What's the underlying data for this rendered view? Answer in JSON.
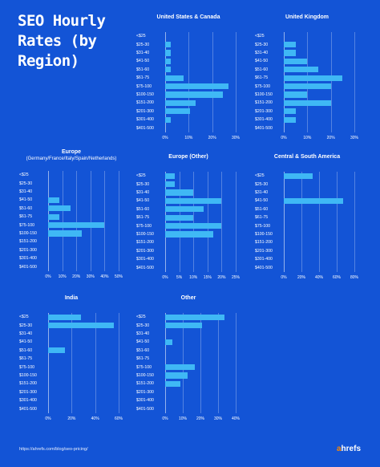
{
  "title": "SEO Hourly Rates (by Region)",
  "footer_url": "https://ahrefs.com/blog/seo-pricing/",
  "logo": {
    "accent": "a",
    "rest": "hrefs"
  },
  "colors": {
    "background": "#1354d6",
    "bar": "#3fb8f5"
  },
  "chart_data": [
    {
      "type": "bar",
      "orientation": "horizontal",
      "title": "United States & Canada",
      "subtitle": "",
      "categories": [
        "<$25",
        "$25-30",
        "$31-40",
        "$41-50",
        "$51-60",
        "$61-75",
        "$75-100",
        "$100-150",
        "$151-200",
        "$201-300",
        "$301-400",
        "$401-500"
      ],
      "values": [
        0,
        2.5,
        2.5,
        2.5,
        2.5,
        8,
        27,
        24.5,
        13,
        10.5,
        2.5,
        0
      ],
      "xlim": [
        0,
        30
      ],
      "ticks": [
        "0%",
        "10%",
        "20%",
        "30%"
      ],
      "grid": true
    },
    {
      "type": "bar",
      "orientation": "horizontal",
      "title": "United Kingdom",
      "subtitle": "",
      "categories": [
        "<$25",
        "$25-30",
        "$31-40",
        "$41-50",
        "$51-60",
        "$61-75",
        "$75-100",
        "$100-150",
        "$151-200",
        "$201-300",
        "$301-400",
        "$401-500"
      ],
      "values": [
        0,
        5,
        5,
        10,
        14.5,
        25,
        20,
        10,
        20,
        5,
        5,
        0
      ],
      "xlim": [
        0,
        30
      ],
      "ticks": [
        "0%",
        "10%",
        "20%",
        "30%"
      ],
      "grid": true
    },
    {
      "type": "bar",
      "orientation": "horizontal",
      "title": "Europe",
      "subtitle": "(Germany/France/Italy/Spain/Netherlands)",
      "categories": [
        "<$25",
        "$25-30",
        "$31-40",
        "$41-50",
        "$51-60",
        "$61-75",
        "$75-100",
        "$100-150",
        "$151-200",
        "$201-300",
        "$301-400",
        "$401-500"
      ],
      "values": [
        0,
        0,
        0,
        8,
        16,
        8,
        40,
        24,
        0,
        0,
        0,
        0
      ],
      "xlim": [
        0,
        50
      ],
      "ticks": [
        "0%",
        "10%",
        "20%",
        "30%",
        "40%",
        "50%"
      ],
      "grid": true
    },
    {
      "type": "bar",
      "orientation": "horizontal",
      "title": "Europe (Other)",
      "subtitle": "",
      "categories": [
        "<$25",
        "$25-30",
        "$31-40",
        "$41-50",
        "$51-60",
        "$61-75",
        "$75-100",
        "$100-150",
        "$151-200",
        "$201-300",
        "$301-400",
        "$401-500"
      ],
      "values": [
        3.5,
        3.5,
        10,
        20,
        13.5,
        10,
        20,
        17,
        0,
        0,
        0,
        0
      ],
      "xlim": [
        0,
        25
      ],
      "ticks": [
        "0%",
        "5%",
        "10%",
        "15%",
        "20%",
        "25%"
      ],
      "grid": true
    },
    {
      "type": "bar",
      "orientation": "horizontal",
      "title": "Central & South America",
      "subtitle": "",
      "categories": [
        "<$25",
        "$25-30",
        "$31-40",
        "$41-50",
        "$51-60",
        "$61-75",
        "$75-100",
        "$100-150",
        "$151-200",
        "$201-300",
        "$301-400",
        "$401-500"
      ],
      "values": [
        33,
        0,
        0,
        67,
        0,
        0,
        0,
        0,
        0,
        0,
        0,
        0
      ],
      "xlim": [
        0,
        80
      ],
      "ticks": [
        "0%",
        "20%",
        "40%",
        "60%",
        "80%"
      ],
      "grid": true
    },
    {
      "type": "bar",
      "orientation": "horizontal",
      "title": "India",
      "subtitle": "",
      "categories": [
        "<$25",
        "$25-30",
        "$31-40",
        "$41-50",
        "$51-60",
        "$61-75",
        "$75-100",
        "$100-150",
        "$151-200",
        "$201-300",
        "$301-400",
        "$401-500"
      ],
      "values": [
        28,
        56,
        0,
        0,
        14,
        0,
        0,
        0,
        0,
        0,
        0,
        0
      ],
      "xlim": [
        0,
        60
      ],
      "ticks": [
        "0%",
        "20%",
        "40%",
        "60%"
      ],
      "grid": true
    },
    {
      "type": "bar",
      "orientation": "horizontal",
      "title": "Other",
      "subtitle": "",
      "categories": [
        "<$25",
        "$25-30",
        "$31-40",
        "$41-50",
        "$51-60",
        "$61-75",
        "$75-100",
        "$100-150",
        "$151-200",
        "$201-300",
        "$301-400",
        "$401-500"
      ],
      "values": [
        33.5,
        21,
        0,
        4,
        0,
        0,
        17,
        12.5,
        8.5,
        0,
        0,
        0
      ],
      "xlim": [
        0,
        40
      ],
      "ticks": [
        "0%",
        "10%",
        "20%",
        "30%",
        "40%"
      ],
      "grid": true
    }
  ]
}
